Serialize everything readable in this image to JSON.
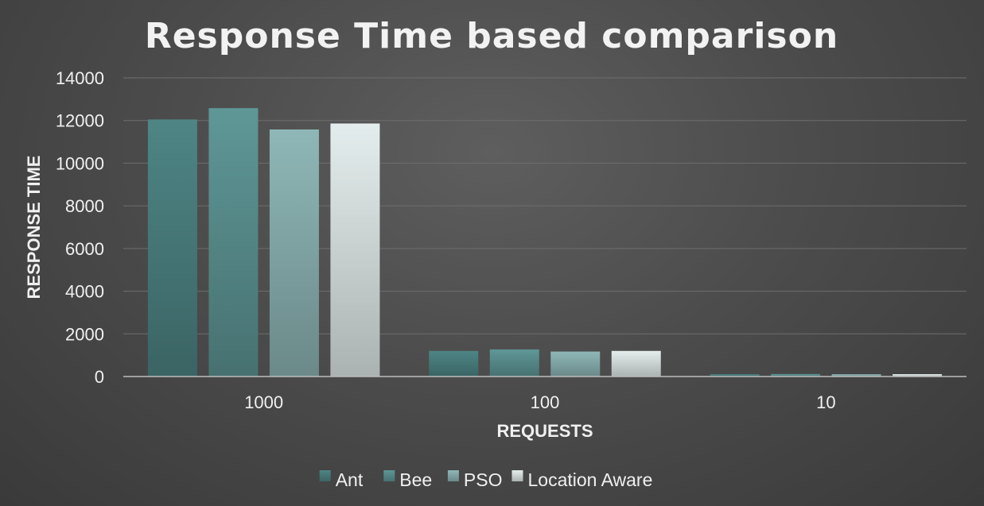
{
  "chart_data": {
    "type": "bar",
    "title": "Response Time based comparison",
    "xlabel": "REQUESTS",
    "ylabel": "RESPONSE TIME",
    "categories": [
      "1000",
      "100",
      "10"
    ],
    "series": [
      {
        "name": "Ant",
        "values": [
          12050,
          1200,
          110
        ],
        "color": "#4e8585"
      },
      {
        "name": "Bee",
        "values": [
          12580,
          1270,
          118
        ],
        "color": "#5f9797"
      },
      {
        "name": "PSO",
        "values": [
          11580,
          1170,
          108
        ],
        "color": "#8fb7b7"
      },
      {
        "name": "Location Aware",
        "values": [
          11860,
          1200,
          112
        ],
        "color": "#e4eded"
      }
    ],
    "ylim": [
      0,
      14000
    ],
    "yticks": [
      0,
      2000,
      4000,
      6000,
      8000,
      10000,
      12000,
      14000
    ],
    "grid": true,
    "legend_position": "bottom"
  }
}
